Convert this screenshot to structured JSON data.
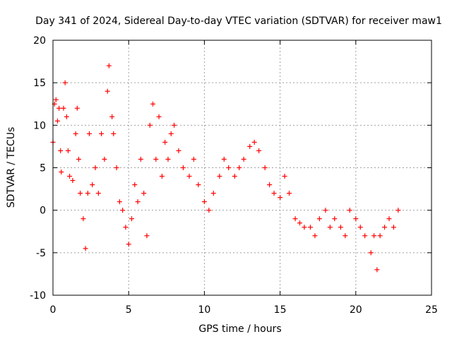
{
  "chart_data": {
    "type": "scatter",
    "title": "Day 341 of 2024, Sidereal Day-to-day VTEC variation (SDTVAR) for receiver maw1",
    "xlabel": "GPS time / hours",
    "ylabel": "SDTVAR / TECUs",
    "xlim": [
      0,
      25
    ],
    "ylim": [
      -10,
      20
    ],
    "xticks": [
      0,
      5,
      10,
      15,
      20,
      25
    ],
    "yticks": [
      -10,
      -5,
      0,
      5,
      10,
      15,
      20
    ],
    "xtick_labels": [
      "0",
      "5",
      "10",
      "15",
      "20",
      "25"
    ],
    "ytick_labels": [
      "-10",
      "-5",
      "0",
      "5",
      "10",
      "15",
      "20"
    ],
    "grid": true,
    "marker": "+",
    "colors": {
      "series": "#ff0000",
      "grid": "#a0a0a0",
      "axis": "#000000"
    },
    "series": [
      {
        "name": "SDTVAR",
        "points": [
          [
            0.0,
            8.0
          ],
          [
            0.1,
            12.5
          ],
          [
            0.2,
            13.0
          ],
          [
            0.3,
            10.5
          ],
          [
            0.4,
            12.0
          ],
          [
            0.5,
            7.0
          ],
          [
            0.55,
            4.5
          ],
          [
            0.7,
            12.0
          ],
          [
            0.8,
            15.0
          ],
          [
            0.9,
            11.0
          ],
          [
            1.0,
            7.0
          ],
          [
            1.1,
            4.0
          ],
          [
            1.3,
            3.5
          ],
          [
            1.5,
            9.0
          ],
          [
            1.6,
            12.0
          ],
          [
            1.7,
            6.0
          ],
          [
            1.8,
            2.0
          ],
          [
            2.0,
            -1.0
          ],
          [
            2.15,
            -4.5
          ],
          [
            2.3,
            2.0
          ],
          [
            2.4,
            9.0
          ],
          [
            2.6,
            3.0
          ],
          [
            2.8,
            5.0
          ],
          [
            3.0,
            2.0
          ],
          [
            3.2,
            9.0
          ],
          [
            3.4,
            6.0
          ],
          [
            3.6,
            14.0
          ],
          [
            3.7,
            17.0
          ],
          [
            3.9,
            11.0
          ],
          [
            4.0,
            9.0
          ],
          [
            4.2,
            5.0
          ],
          [
            4.4,
            1.0
          ],
          [
            4.6,
            0.0
          ],
          [
            4.8,
            -2.0
          ],
          [
            5.0,
            -4.0
          ],
          [
            5.2,
            -1.0
          ],
          [
            5.4,
            3.0
          ],
          [
            5.6,
            1.0
          ],
          [
            5.8,
            6.0
          ],
          [
            6.0,
            2.0
          ],
          [
            6.2,
            -3.0
          ],
          [
            6.4,
            10.0
          ],
          [
            6.6,
            12.5
          ],
          [
            6.8,
            6.0
          ],
          [
            7.0,
            11.0
          ],
          [
            7.2,
            4.0
          ],
          [
            7.4,
            8.0
          ],
          [
            7.6,
            6.0
          ],
          [
            7.8,
            9.0
          ],
          [
            8.0,
            10.0
          ],
          [
            8.3,
            7.0
          ],
          [
            8.6,
            5.0
          ],
          [
            9.0,
            4.0
          ],
          [
            9.3,
            6.0
          ],
          [
            9.6,
            3.0
          ],
          [
            10.0,
            1.0
          ],
          [
            10.3,
            0.0
          ],
          [
            10.6,
            2.0
          ],
          [
            11.0,
            4.0
          ],
          [
            11.3,
            6.0
          ],
          [
            11.6,
            5.0
          ],
          [
            12.0,
            4.0
          ],
          [
            12.3,
            5.0
          ],
          [
            12.6,
            6.0
          ],
          [
            13.0,
            7.5
          ],
          [
            13.3,
            8.0
          ],
          [
            13.6,
            7.0
          ],
          [
            14.0,
            5.0
          ],
          [
            14.3,
            3.0
          ],
          [
            14.6,
            2.0
          ],
          [
            15.0,
            1.5
          ],
          [
            15.3,
            4.0
          ],
          [
            15.6,
            2.0
          ],
          [
            16.0,
            -1.0
          ],
          [
            16.3,
            -1.5
          ],
          [
            16.6,
            -2.0
          ],
          [
            17.0,
            -2.0
          ],
          [
            17.3,
            -3.0
          ],
          [
            17.6,
            -1.0
          ],
          [
            18.0,
            0.0
          ],
          [
            18.3,
            -2.0
          ],
          [
            18.6,
            -1.0
          ],
          [
            19.0,
            -2.0
          ],
          [
            19.3,
            -3.0
          ],
          [
            19.6,
            0.0
          ],
          [
            20.0,
            -1.0
          ],
          [
            20.3,
            -2.0
          ],
          [
            20.6,
            -3.0
          ],
          [
            21.0,
            -5.0
          ],
          [
            21.2,
            -3.0
          ],
          [
            21.4,
            -7.0
          ],
          [
            21.6,
            -3.0
          ],
          [
            21.9,
            -2.0
          ],
          [
            22.2,
            -1.0
          ],
          [
            22.5,
            -2.0
          ],
          [
            22.8,
            0.0
          ]
        ]
      }
    ]
  }
}
